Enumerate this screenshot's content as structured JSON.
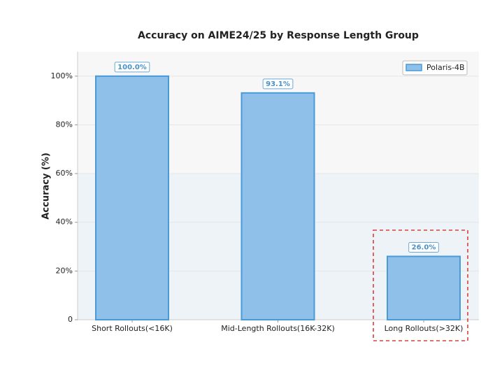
{
  "chart_data": {
    "type": "bar",
    "title": "Accuracy on AIME24/25 by Response Length Group",
    "y_label": "Accuracy (%)",
    "categories": [
      "Short Rollouts(<16K)",
      "Mid-Length Rollouts(16K-32K)",
      "Long Rollouts(>32K)"
    ],
    "series": [
      {
        "name": "Polaris-4B",
        "color": "#8fc0ea",
        "values": [
          100.0,
          93.1,
          26.0
        ],
        "value_labels": [
          "100.0%",
          "93.1%",
          "26.0%"
        ]
      }
    ],
    "ylim": [
      0,
      110
    ],
    "yticks": [
      0,
      {
        "value": 20,
        "label": "20%"
      },
      {
        "value": 40,
        "label": "40%"
      },
      {
        "value": 60,
        "label": "60%"
      },
      {
        "value": 80,
        "label": "80%"
      },
      {
        "value": 100,
        "label": "100%"
      }
    ],
    "grid": true,
    "legend": "upper right"
  }
}
